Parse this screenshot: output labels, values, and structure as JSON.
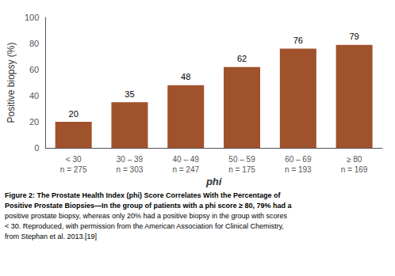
{
  "chart_data": {
    "type": "bar",
    "categories": [
      "< 30\nn = 275",
      "30 – 39\nn = 303",
      "40 – 49\nn = 247",
      "50 – 59\nn = 175",
      "60 – 69\nn = 193",
      "≥ 80\nn = 169"
    ],
    "values": [
      20,
      35,
      48,
      62,
      76,
      79
    ],
    "color": "#A0522D",
    "xlabel": "phi",
    "ylabel": "Positive biopsy (%)",
    "ylim": [
      0,
      100
    ],
    "yticks": [
      0,
      20,
      40,
      60,
      80,
      100
    ],
    "grid": false,
    "data_labels": true,
    "annotations": [
      "Figure 2: The Prostate Health Index (phi) Score Correlates With the Percentage of",
      "Positive Prostate Biopsies—In the group of patients with a phi score ≥ 80, 79% had a",
      "positive prostate biopsy, whereas only 20% had a positive biopsy in the group with scores",
      "< 30. Reproduced, with permission from the American Association for Clinical Chemistry,",
      "from Stephan et al. 2013.[19]"
    ]
  }
}
